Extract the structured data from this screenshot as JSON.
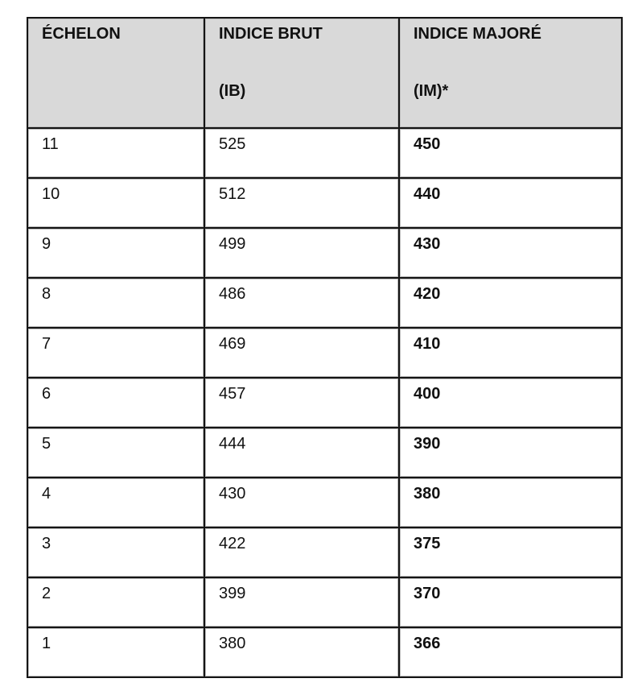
{
  "table": {
    "headers": [
      {
        "line1": "ÉCHELON",
        "line2": ""
      },
      {
        "line1": "INDICE BRUT",
        "line2": "(IB)"
      },
      {
        "line1": "INDICE MAJORÉ",
        "line2": "(IM)*"
      }
    ],
    "rows": [
      [
        "11",
        "525",
        "450"
      ],
      [
        "10",
        "512",
        "440"
      ],
      [
        "9",
        "499",
        "430"
      ],
      [
        "8",
        "486",
        "420"
      ],
      [
        "7",
        "469",
        "410"
      ],
      [
        "6",
        "457",
        "400"
      ],
      [
        "5",
        "444",
        "390"
      ],
      [
        "4",
        "430",
        "380"
      ],
      [
        "3",
        "422",
        "375"
      ],
      [
        "2",
        "399",
        "370"
      ],
      [
        "1",
        "380",
        "366"
      ]
    ]
  }
}
